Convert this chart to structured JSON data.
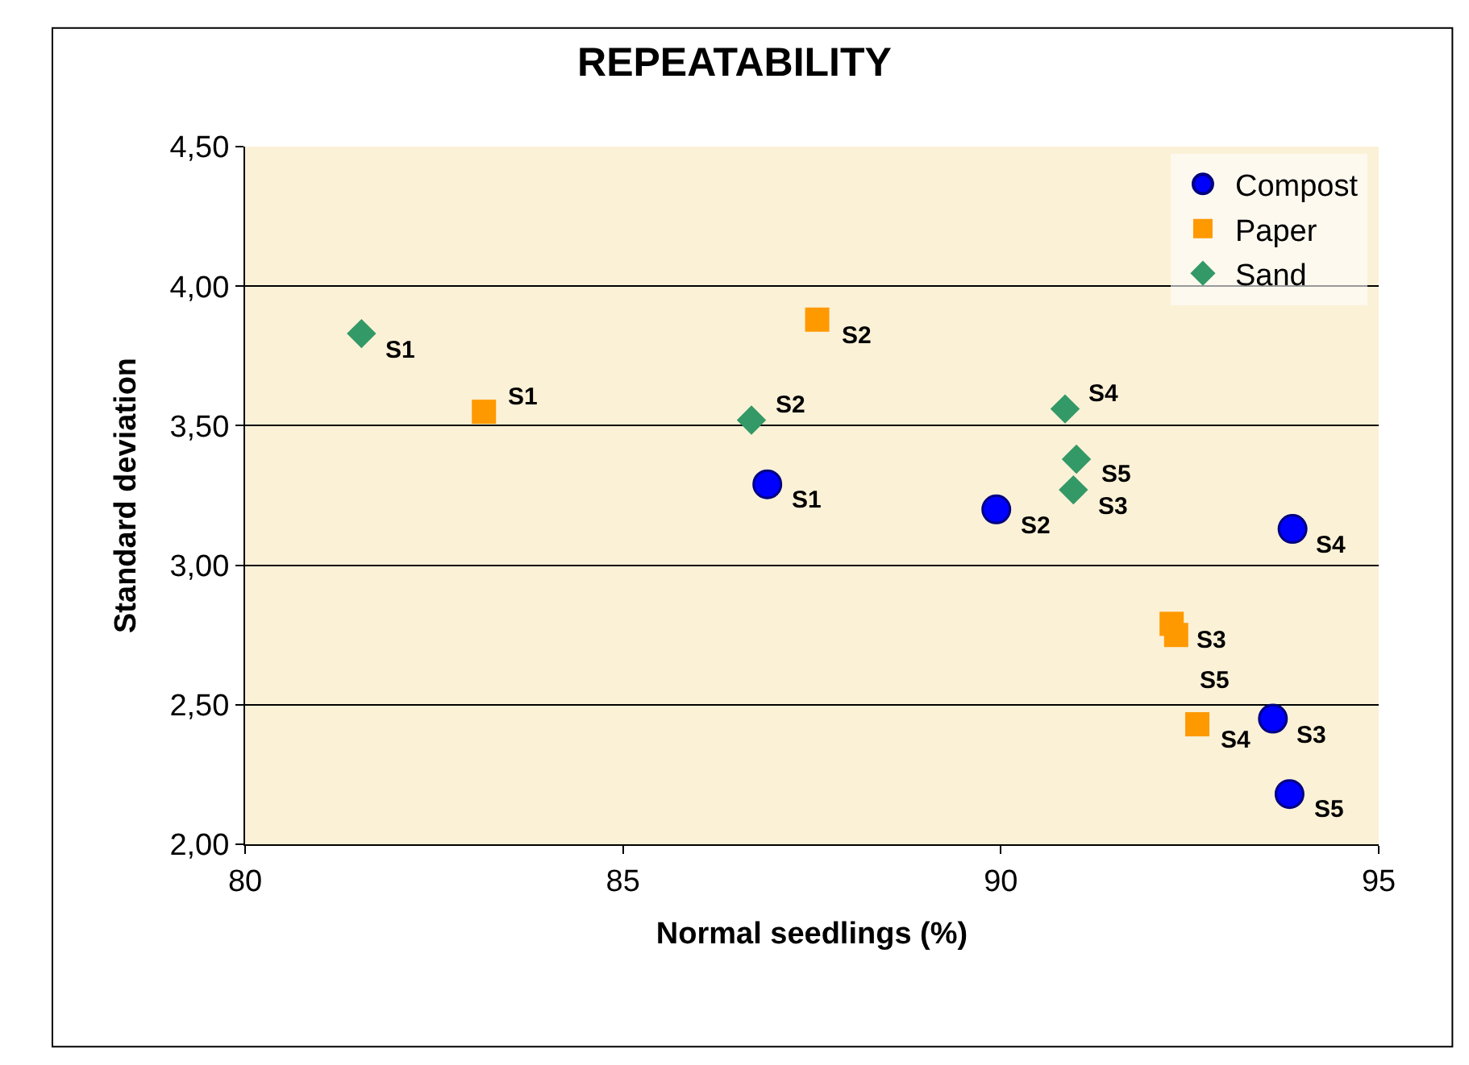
{
  "chart_data": {
    "type": "scatter",
    "title": "REPEATABILITY",
    "xlabel": "Normal seedlings (%)",
    "ylabel": "Standard deviation",
    "xlim": [
      80,
      95
    ],
    "xticks": [
      80,
      85,
      90,
      95
    ],
    "ylim": [
      2.0,
      4.5
    ],
    "yticks": [
      {
        "value": 2.0,
        "label": "2,00"
      },
      {
        "value": 2.5,
        "label": "2,50"
      },
      {
        "value": 3.0,
        "label": "3,00"
      },
      {
        "value": 3.5,
        "label": "3,50"
      },
      {
        "value": 4.0,
        "label": "4,00"
      },
      {
        "value": 4.5,
        "label": "4,50"
      }
    ],
    "grid": "y",
    "legend": "top right",
    "series": [
      {
        "name": "Compost",
        "color": "#0000ff",
        "marker": "circle",
        "x": [
          86.91,
          89.94,
          93.86,
          93.6,
          93.82
        ],
        "values": [
          3.29,
          3.2,
          3.13,
          2.45,
          2.18
        ]
      },
      {
        "name": "Paper",
        "color": "#ff9900",
        "marker": "square",
        "x": [
          83.16,
          87.57,
          92.26,
          92.32,
          92.6
        ],
        "values": [
          3.55,
          3.88,
          2.79,
          2.75,
          2.43
        ]
      },
      {
        "name": "Sand",
        "color": "#339966",
        "marker": "diamond",
        "x": [
          81.54,
          86.7,
          90.85,
          91.0,
          90.96
        ],
        "values": [
          3.83,
          3.52,
          3.56,
          3.38,
          3.27
        ]
      }
    ],
    "annotations": [
      {
        "text": "S1",
        "x": 86.91,
        "y": 3.29
      },
      {
        "text": "S2",
        "x": 89.94,
        "y": 3.2
      },
      {
        "text": "S4",
        "x": 93.86,
        "y": 3.13
      },
      {
        "text": "S3",
        "x": 93.6,
        "y": 2.45
      },
      {
        "text": "S5",
        "x": 93.82,
        "y": 2.18
      },
      {
        "text": "S1",
        "x": 83.16,
        "y": 3.55
      },
      {
        "text": "S2",
        "x": 87.57,
        "y": 3.88
      },
      {
        "text": "S3",
        "x": 92.26,
        "y": 2.79
      },
      {
        "text": "S5",
        "x": 92.32,
        "y": 2.75
      },
      {
        "text": "S4",
        "x": 92.6,
        "y": 2.43
      },
      {
        "text": "S1",
        "x": 81.54,
        "y": 3.83
      },
      {
        "text": "S2",
        "x": 86.7,
        "y": 3.52
      },
      {
        "text": "S4",
        "x": 90.85,
        "y": 3.56
      },
      {
        "text": "S5",
        "x": 91.0,
        "y": 3.38
      },
      {
        "text": "S3",
        "x": 90.96,
        "y": 3.27
      }
    ]
  }
}
